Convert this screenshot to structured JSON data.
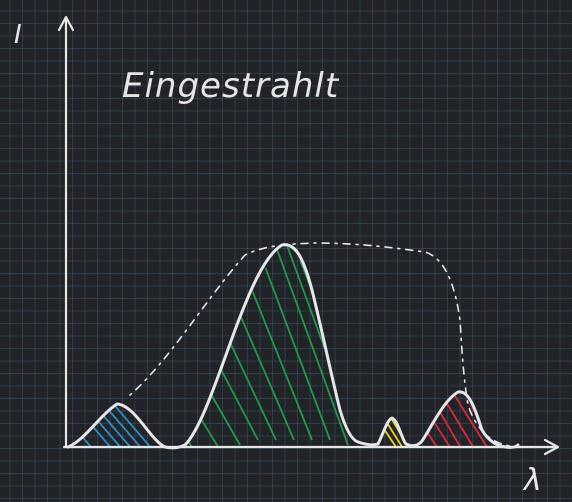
{
  "title": "Eingestrahlt",
  "y_axis_label": "I",
  "x_axis_label": "λ",
  "colors": {
    "background": "#212326",
    "ink": "#e6e6e6",
    "blue": "#2a8fc8",
    "green": "#1f9a47",
    "yellow": "#e8d21e",
    "red": "#e0263a"
  },
  "icons": {
    "axis-arrow": "arrowhead"
  }
}
